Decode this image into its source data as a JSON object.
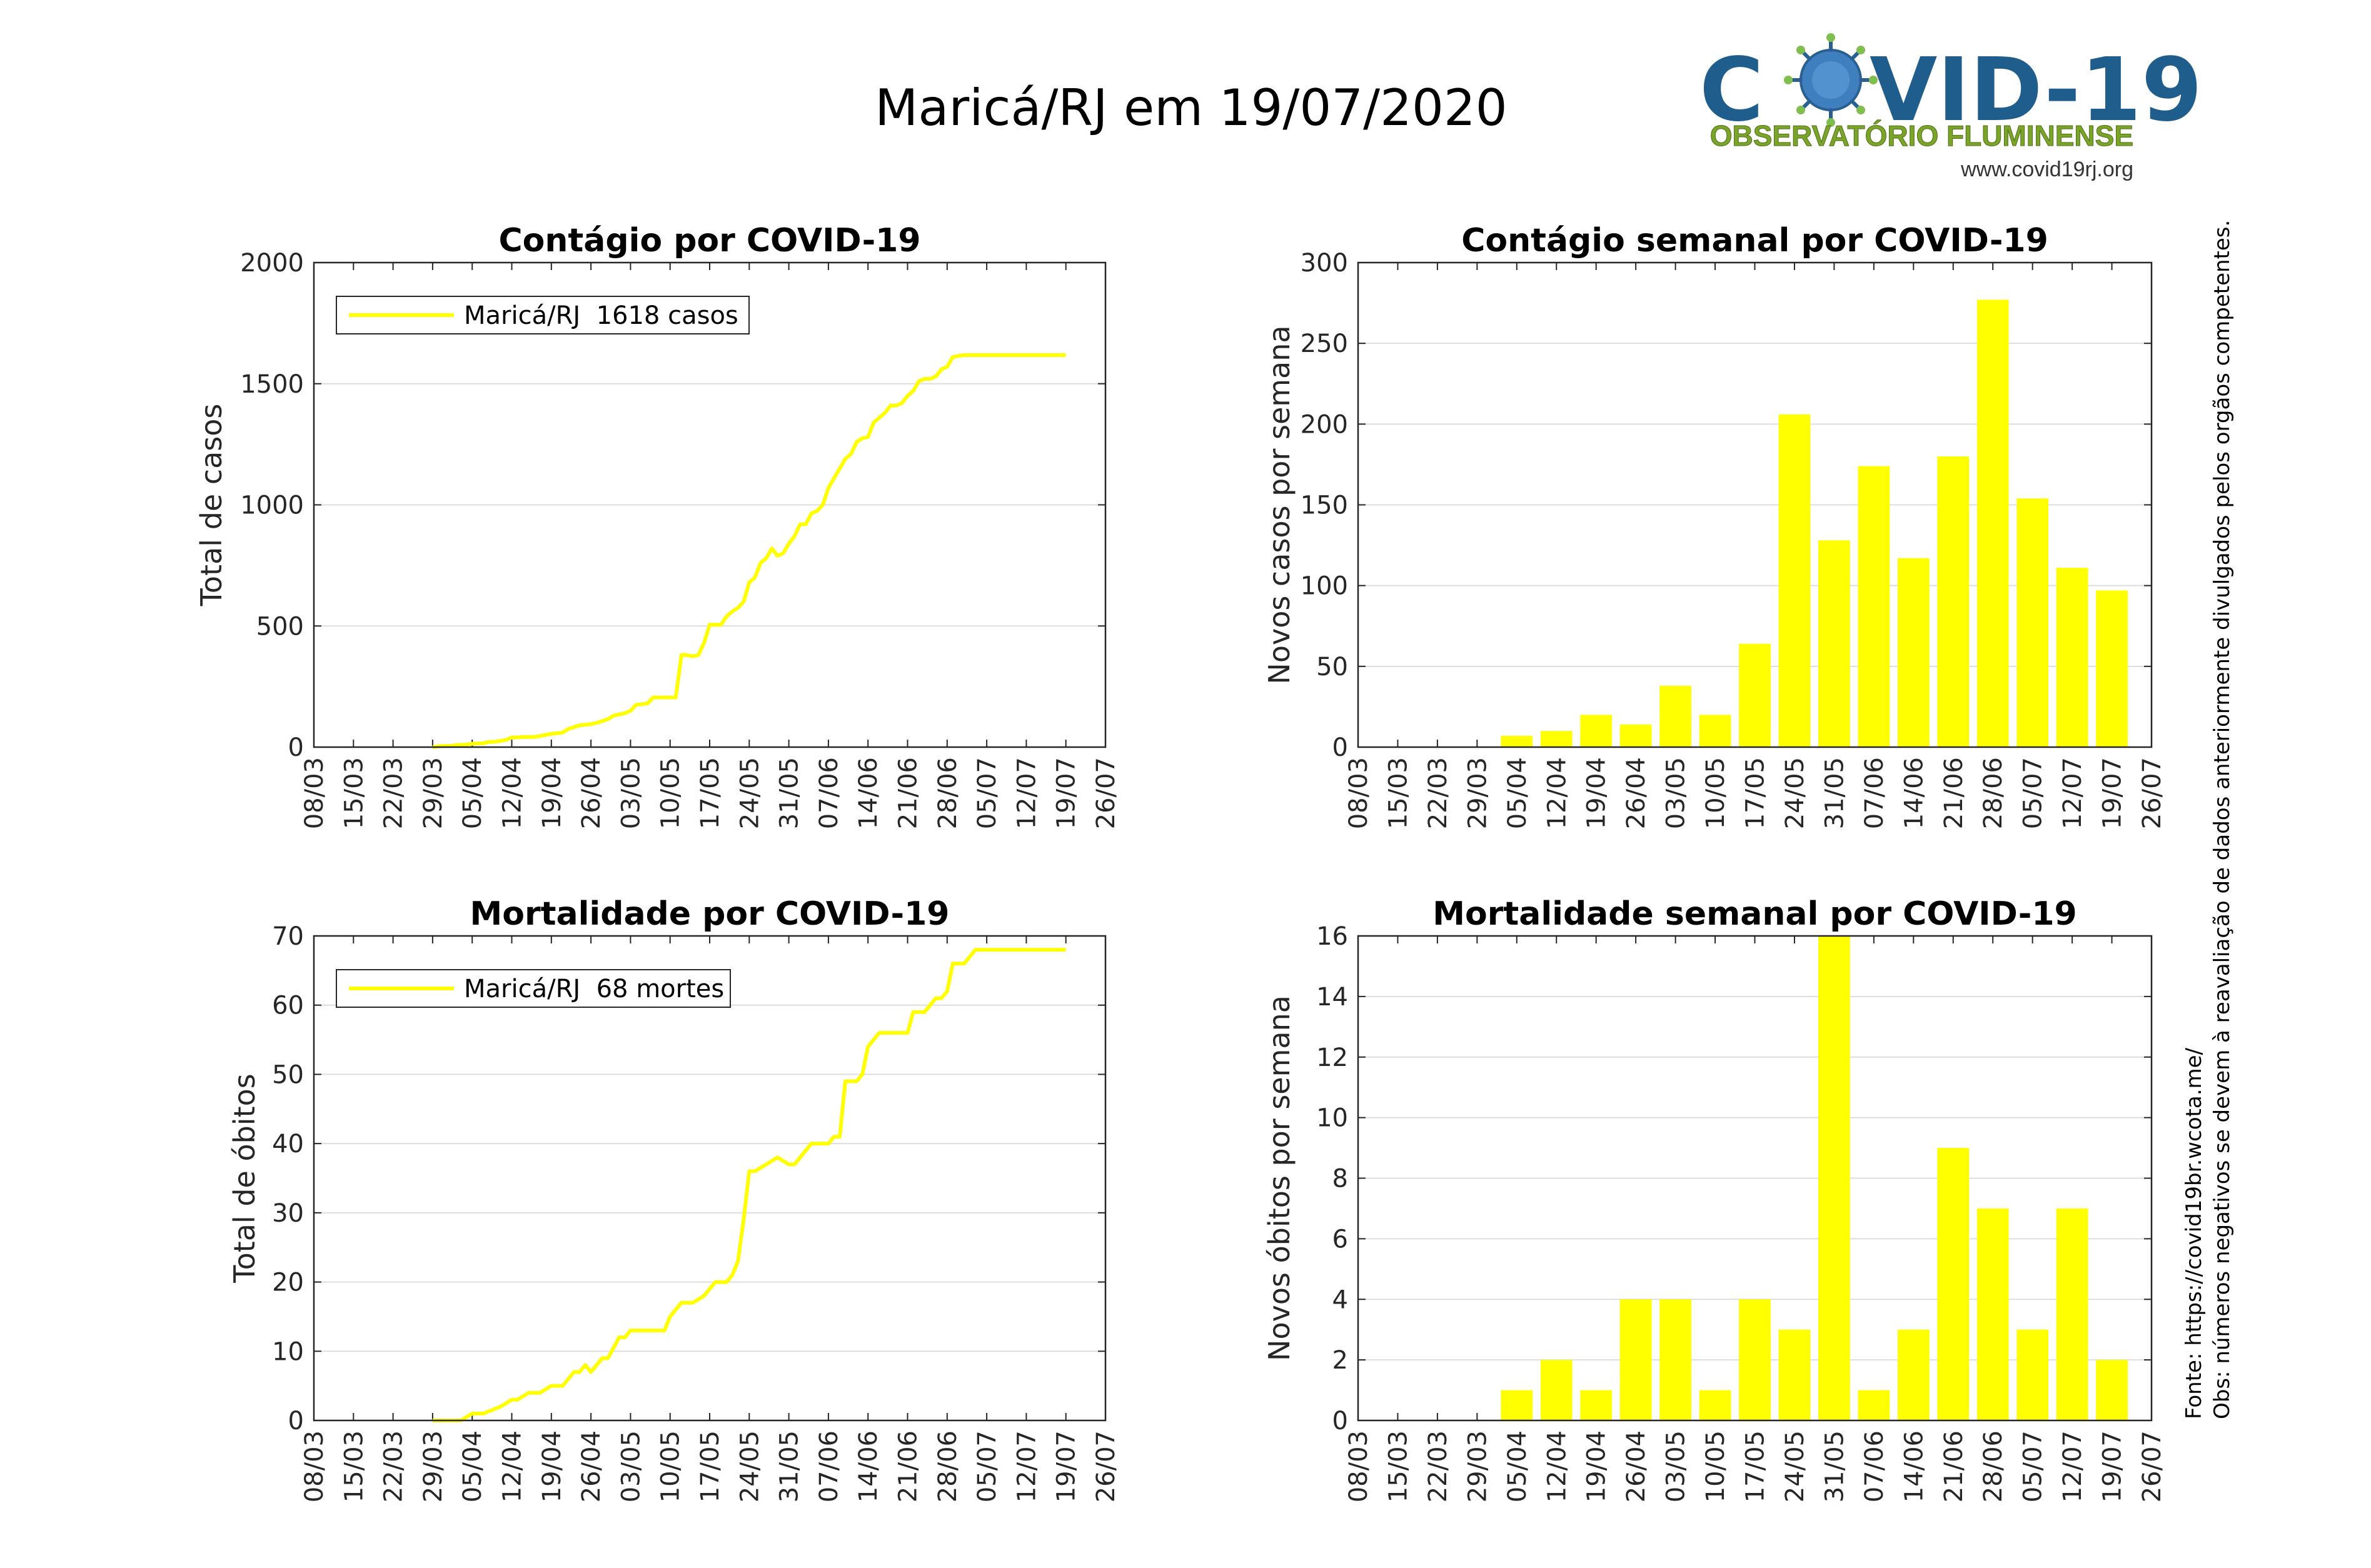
{
  "page": {
    "title": "Maricá/RJ em 19/07/2020",
    "source_note": "Fonte: https://covid19br.wcota.me/",
    "obs_note": "Obs: números negativos se devem à reavaliação de dados anteriormente divulgados pelos orgãos competentes."
  },
  "logo": {
    "part1": "C",
    "part2": "VID-19",
    "subtitle": "OBSERVATÓRIO FLUMINENSE",
    "url": "www.covid19rj.org",
    "colors": {
      "text_blue": "#1f5d8c",
      "subtitle_green": "#7aa42a",
      "virus": "#3f7fbf"
    }
  },
  "colors": {
    "series": "#ffff00",
    "grid": "#dddddd",
    "axis": "#262626"
  },
  "chart_data": [
    {
      "id": "cases_cumulative",
      "type": "line",
      "title": "Contágio por COVID-19",
      "xlabel": "",
      "ylabel": "Total de casos",
      "xticks": [
        "08/03",
        "15/03",
        "22/03",
        "29/03",
        "05/04",
        "12/04",
        "19/04",
        "26/04",
        "03/05",
        "10/05",
        "17/05",
        "24/05",
        "31/05",
        "07/06",
        "14/06",
        "21/06",
        "28/06",
        "05/07",
        "12/07",
        "19/07",
        "26/07"
      ],
      "ylim": [
        0,
        2000
      ],
      "yticks": [
        0,
        500,
        1000,
        1500,
        2000
      ],
      "legend": "Maricá/RJ  1618 casos",
      "legend_position": "top-left",
      "grid": "horizontal",
      "series": [
        {
          "name": "Maricá/RJ",
          "x": [
            21,
            22,
            23,
            24,
            25,
            27,
            28,
            30,
            31,
            32,
            33,
            34,
            35,
            36,
            37,
            39,
            40,
            42,
            44,
            45,
            47,
            49,
            50,
            52,
            53,
            55,
            56,
            57,
            59,
            60,
            62,
            63,
            64,
            65,
            66,
            67,
            68,
            69,
            70,
            71,
            72,
            73,
            74,
            75,
            76,
            77,
            78,
            79,
            80,
            81,
            82,
            83,
            84,
            85,
            86,
            87,
            88,
            89,
            90,
            91,
            92,
            93,
            94,
            95,
            96,
            97,
            98,
            99,
            100,
            101,
            102,
            103,
            104,
            105,
            106,
            107,
            108,
            109,
            110,
            111,
            112,
            113,
            114,
            115,
            116,
            117,
            118,
            119,
            120,
            121,
            122,
            123,
            124,
            125,
            126,
            131,
            132,
            133
          ],
          "y": [
            0,
            3,
            5,
            5,
            8,
            10,
            14,
            16,
            22,
            22,
            26,
            30,
            40,
            40,
            42,
            42,
            46,
            55,
            60,
            75,
            90,
            95,
            100,
            115,
            130,
            140,
            150,
            175,
            180,
            205,
            205,
            205,
            205,
            380,
            380,
            375,
            380,
            430,
            505,
            505,
            505,
            540,
            560,
            575,
            600,
            680,
            700,
            760,
            780,
            820,
            790,
            800,
            840,
            870,
            920,
            920,
            965,
            975,
            1000,
            1070,
            1110,
            1150,
            1190,
            1210,
            1260,
            1275,
            1280,
            1340,
            1360,
            1380,
            1410,
            1410,
            1420,
            1450,
            1470,
            1510,
            1520,
            1520,
            1530,
            1560,
            1570,
            1610,
            1615,
            1618,
            1618,
            1618,
            1618,
            1618,
            1618,
            1618,
            1618,
            1618,
            1618,
            1618,
            1618,
            1618,
            1618,
            1618
          ]
        }
      ]
    },
    {
      "id": "cases_weekly",
      "type": "bar",
      "title": "Contágio semanal por COVID-19",
      "xlabel": "",
      "ylabel": "Novos casos por semana",
      "xticks": [
        "08/03",
        "15/03",
        "22/03",
        "29/03",
        "05/04",
        "12/04",
        "19/04",
        "26/04",
        "03/05",
        "10/05",
        "17/05",
        "24/05",
        "31/05",
        "07/06",
        "14/06",
        "21/06",
        "28/06",
        "05/07",
        "12/07",
        "19/07",
        "26/07"
      ],
      "categories": [
        "05/04",
        "12/04",
        "19/04",
        "26/04",
        "03/05",
        "10/05",
        "17/05",
        "24/05",
        "31/05",
        "07/06",
        "14/06",
        "21/06",
        "28/06",
        "05/07",
        "12/07",
        "19/07"
      ],
      "values": [
        7,
        10,
        20,
        14,
        38,
        20,
        64,
        206,
        128,
        174,
        117,
        180,
        277,
        154,
        111,
        97
      ],
      "ylim": [
        0,
        300
      ],
      "yticks": [
        0,
        50,
        100,
        150,
        200,
        250,
        300
      ],
      "grid": "horizontal"
    },
    {
      "id": "deaths_cumulative",
      "type": "line",
      "title": "Mortalidade por COVID-19",
      "xlabel": "",
      "ylabel": "Total de óbitos",
      "xticks": [
        "08/03",
        "15/03",
        "22/03",
        "29/03",
        "05/04",
        "12/04",
        "19/04",
        "26/04",
        "03/05",
        "10/05",
        "17/05",
        "24/05",
        "31/05",
        "07/06",
        "14/06",
        "21/06",
        "28/06",
        "05/07",
        "12/07",
        "19/07",
        "26/07"
      ],
      "ylim": [
        0,
        70
      ],
      "yticks": [
        0,
        10,
        20,
        30,
        40,
        50,
        60,
        70
      ],
      "legend": "Maricá/RJ  68 mortes",
      "legend_position": "top-left",
      "grid": "horizontal",
      "series": [
        {
          "name": "Maricá/RJ",
          "x": [
            21,
            24,
            26,
            28,
            30,
            33,
            35,
            36,
            38,
            40,
            42,
            44,
            46,
            47,
            48,
            49,
            50,
            51,
            52,
            54,
            55,
            56,
            58,
            60,
            62,
            63,
            65,
            67,
            69,
            71,
            73,
            74,
            75,
            76,
            77,
            78,
            80,
            82,
            84,
            85,
            86,
            87,
            88,
            89,
            90,
            91,
            92,
            93,
            94,
            95,
            96,
            97,
            98,
            100,
            101,
            103,
            104,
            105,
            106,
            107,
            108,
            110,
            111,
            112,
            113,
            115,
            116,
            117,
            118,
            119,
            120,
            121,
            122,
            123,
            124,
            125,
            126,
            131,
            133
          ],
          "y": [
            0,
            0,
            0,
            1,
            1,
            2,
            3,
            3,
            4,
            4,
            5,
            5,
            7,
            7,
            8,
            7,
            8,
            9,
            9,
            12,
            12,
            13,
            13,
            13,
            13,
            15,
            17,
            17,
            18,
            20,
            20,
            21,
            23,
            29,
            36,
            36,
            37,
            38,
            37,
            37,
            38,
            39,
            40,
            40,
            40,
            40,
            41,
            41,
            49,
            49,
            49,
            50,
            54,
            56,
            56,
            56,
            56,
            56,
            59,
            59,
            59,
            61,
            61,
            62,
            66,
            66,
            67,
            68,
            68,
            68,
            68,
            68,
            68,
            68,
            68,
            68,
            68,
            68,
            68
          ]
        }
      ]
    },
    {
      "id": "deaths_weekly",
      "type": "bar",
      "title": "Mortalidade semanal por COVID-19",
      "xlabel": "",
      "ylabel": "Novos óbitos por semana",
      "xticks": [
        "08/03",
        "15/03",
        "22/03",
        "29/03",
        "05/04",
        "12/04",
        "19/04",
        "26/04",
        "03/05",
        "10/05",
        "17/05",
        "24/05",
        "31/05",
        "07/06",
        "14/06",
        "21/06",
        "28/06",
        "05/07",
        "12/07",
        "19/07",
        "26/07"
      ],
      "categories": [
        "05/04",
        "12/04",
        "19/04",
        "26/04",
        "03/05",
        "10/05",
        "17/05",
        "24/05",
        "31/05",
        "07/06",
        "14/06",
        "21/06",
        "28/06",
        "05/07",
        "12/07",
        "19/07"
      ],
      "values": [
        1,
        2,
        1,
        4,
        4,
        1,
        4,
        3,
        16,
        1,
        3,
        9,
        7,
        3,
        7,
        2
      ],
      "ylim": [
        0,
        16
      ],
      "yticks": [
        0,
        2,
        4,
        6,
        8,
        10,
        12,
        14,
        16
      ],
      "grid": "horizontal"
    }
  ]
}
